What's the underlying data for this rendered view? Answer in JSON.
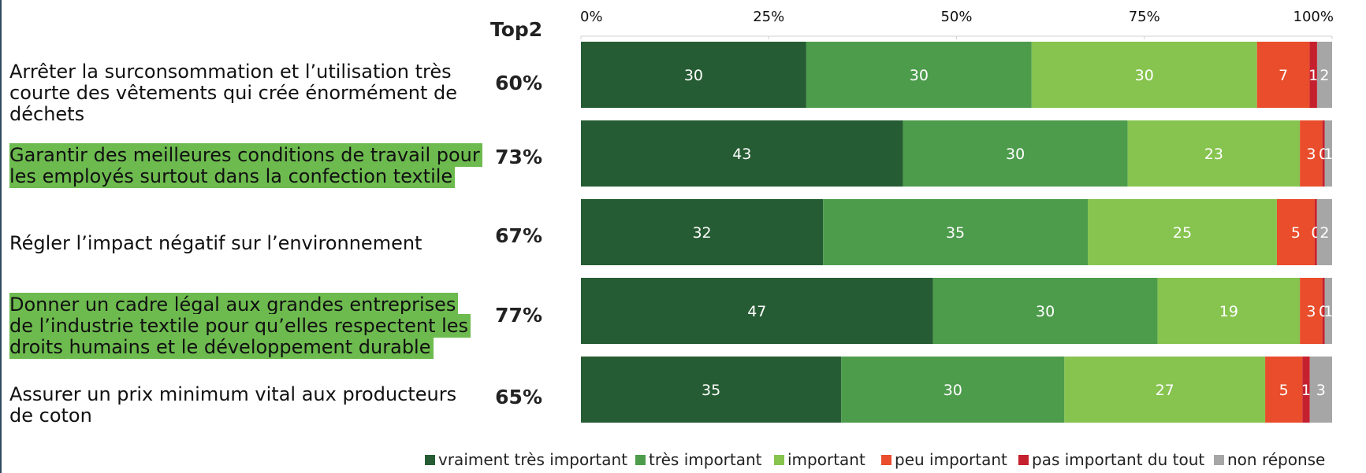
{
  "chart_data": {
    "type": "bar",
    "orientation": "horizontal",
    "stacked": true,
    "axis_tick_labels": [
      "0%",
      "25%",
      "50%",
      "75%",
      "100%"
    ],
    "xlim": [
      0,
      100
    ],
    "grid": false,
    "legend_position": "bottom",
    "top2_header": "Top2",
    "categories": [
      "Arrêter la surconsommation et l’utilisation très courte des vêtements qui crée énormément de déchets",
      "Garantir des meilleures conditions de travail pour les employés surtout dans la confection textile",
      "Régler l’impact négatif sur l’environnement",
      "Donner un cadre légal aux grandes entreprises de l’industrie textile pour qu’elles respectent les droits humains et le développement durable",
      "Assurer un prix minimum vital aux producteurs de coton"
    ],
    "category_lines": [
      [
        "Arrêter la surconsommation et l’utilisation très",
        "courte des vêtements qui crée énormément de",
        "déchets"
      ],
      [
        "Garantir des meilleures conditions de travail pour",
        "les employés surtout dans la confection textile"
      ],
      [
        "Régler l’impact négatif sur l’environnement"
      ],
      [
        "Donner un cadre légal aux grandes entreprises",
        "de l’industrie textile pour qu’elles respectent les",
        "droits humains et le développement durable"
      ],
      [
        "Assurer un prix minimum vital aux producteurs",
        "de coton"
      ]
    ],
    "highlighted_categories": [
      false,
      true,
      false,
      true,
      false
    ],
    "top2": [
      "60%",
      "73%",
      "67%",
      "77%",
      "65%"
    ],
    "series": [
      {
        "name": "vraiment très important",
        "color": "#265c33",
        "values": [
          30,
          43,
          32,
          47,
          35
        ],
        "labels": [
          "30",
          "43",
          "32",
          "47",
          "35"
        ],
        "label_color": "#ffffff"
      },
      {
        "name": "très important",
        "color": "#4d9c4c",
        "values": [
          30,
          30,
          35,
          30,
          30
        ],
        "labels": [
          "30",
          "30",
          "35",
          "30",
          "30"
        ],
        "label_color": "#ffffff"
      },
      {
        "name": "important",
        "color": "#86c44f",
        "values": [
          30,
          23,
          25,
          19,
          27
        ],
        "labels": [
          "30",
          "23",
          "25",
          "19",
          "27"
        ],
        "label_color": "#ffffff"
      },
      {
        "name": "peu important",
        "color": "#e94d2b",
        "values": [
          7,
          3,
          5,
          3,
          5
        ],
        "labels": [
          "7",
          "3",
          "5",
          "3",
          "5"
        ],
        "label_color": "#ffffff"
      },
      {
        "name": "pas important du tout",
        "color": "#c5202e",
        "values": [
          1,
          0.3,
          0.3,
          0.3,
          1
        ],
        "labels": [
          "1",
          "0",
          "0",
          "0",
          "1"
        ],
        "label_color": "#ffffff"
      },
      {
        "name": "non réponse",
        "color": "#a6a6a6",
        "values": [
          2,
          1,
          2,
          1,
          3
        ],
        "labels": [
          "2",
          "1",
          "2",
          "1",
          "3"
        ],
        "label_color": "#ffffff"
      }
    ]
  }
}
